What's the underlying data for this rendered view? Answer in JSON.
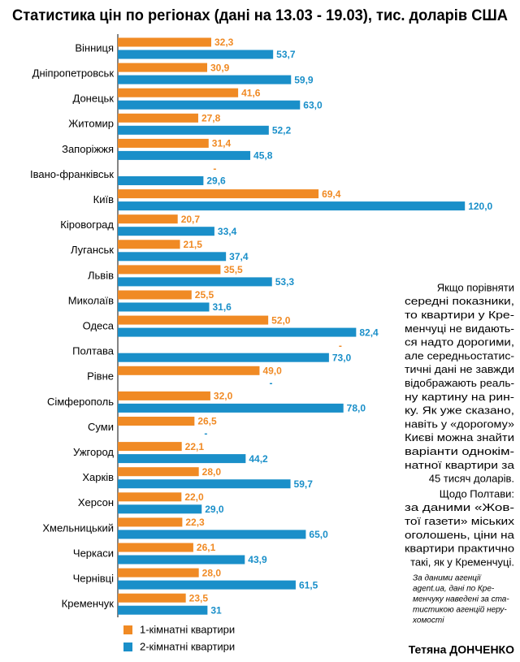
{
  "chart_data": {
    "type": "hbar",
    "title": "Статистика цін по регіонах (дані на 13.03 - 19.03), тис. доларів США",
    "categories": [
      "Вінниця",
      "Дніпропетровськ",
      "Донецьк",
      "Житомир",
      "Запоріжжя",
      "Івано-франківськ",
      "Київ",
      "Кіровоград",
      "Луганськ",
      "Львів",
      "Миколаїв",
      "Одеса",
      "Полтава",
      "Рівне",
      "Сімферополь",
      "Суми",
      "Ужгород",
      "Харків",
      "Херсон",
      "Хмельницький",
      "Черкаси",
      "Чернівці",
      "Кременчук"
    ],
    "series": [
      {
        "name": "1-кімнатні квартири",
        "color": "#f08a24",
        "values": [
          32.3,
          30.9,
          41.6,
          27.8,
          31.4,
          null,
          69.4,
          20.7,
          21.5,
          35.5,
          25.5,
          52.0,
          null,
          49.0,
          32.0,
          26.5,
          22.1,
          28.0,
          22.0,
          22.3,
          26.1,
          28.0,
          23.5
        ],
        "value_labels": [
          "32,3",
          "30,9",
          "41,6",
          "27,8",
          "31,4",
          "-",
          "69,4",
          "20,7",
          "21,5",
          "35,5",
          "25,5",
          "52,0",
          "-",
          "49,0",
          "32,0",
          "26,5",
          "22,1",
          "28,0",
          "22,0",
          "22,3",
          "26,1",
          "28,0",
          "23,5"
        ]
      },
      {
        "name": "2-кімнатні квартири",
        "color": "#1a8fc9",
        "values": [
          53.7,
          59.9,
          63.0,
          52.2,
          45.8,
          29.6,
          120.0,
          33.4,
          37.4,
          53.3,
          31.6,
          82.4,
          73.0,
          null,
          78.0,
          null,
          44.2,
          59.7,
          29.0,
          65.0,
          43.9,
          61.5,
          31
        ],
        "value_labels": [
          "53,7",
          "59,9",
          "63,0",
          "52,2",
          "45,8",
          "29,6",
          "120,0",
          "33,4",
          "37,4",
          "53,3",
          "31,6",
          "82,4",
          "73,0",
          "-",
          "78,0",
          "-",
          "44,2",
          "59,7",
          "29,0",
          "65,0",
          "43,9",
          "61,5",
          "31"
        ]
      }
    ]
  },
  "note": {
    "paragraphs": [
      [
        "Якщо порівняти",
        "середні показники,",
        "то квартири у Кре-",
        "менчуці не видають-",
        "ся надто дорогими,",
        "але середньостатис-",
        "тичні дані не завжди",
        "відображають реаль-",
        "ну картину на рин-",
        "ку. Як уже сказано,",
        "навіть у «дорогому»",
        "Києві можна знайти",
        "варіанти однокім-",
        "натної квартири за",
        "45 тисяч доларів."
      ],
      [
        "Щодо Полтави:",
        "за даними «Жов-",
        "тої газети» міських",
        "оголошень, ціни на",
        "квартири практично",
        "такі, як у Кременчуці."
      ]
    ],
    "source": [
      "За даними агенції",
      "agent.ua, дані по Кре-",
      "менчуку наведені за ста-",
      "тистикою агенцій неру-",
      "хомості"
    ]
  },
  "author": "Тетяна ДОНЧЕНКО"
}
